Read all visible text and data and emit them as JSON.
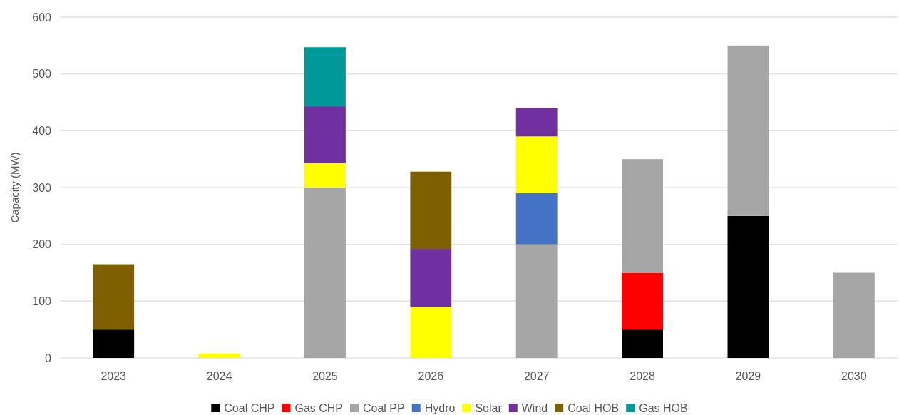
{
  "chart_data": {
    "type": "bar",
    "stacked": true,
    "ylabel": "Capacity (MW)",
    "categories": [
      "2023",
      "2024",
      "2025",
      "2026",
      "2027",
      "2028",
      "2029",
      "2030"
    ],
    "series": [
      {
        "name": "Coal CHP",
        "color": "#000000",
        "values": [
          50,
          null,
          null,
          null,
          null,
          50,
          250,
          null
        ]
      },
      {
        "name": "Gas CHP",
        "color": "#ff0000",
        "values": [
          null,
          null,
          null,
          null,
          null,
          100,
          null,
          null
        ]
      },
      {
        "name": "Coal PP",
        "color": "#a6a6a6",
        "values": [
          null,
          null,
          300,
          null,
          200,
          200,
          300,
          150
        ]
      },
      {
        "name": "Hydro",
        "color": "#4472c4",
        "values": [
          null,
          null,
          null,
          null,
          90,
          null,
          null,
          null
        ]
      },
      {
        "name": "Solar",
        "color": "#ffff00",
        "values": [
          null,
          8,
          43,
          90,
          100,
          null,
          null,
          null
        ]
      },
      {
        "name": "Wind",
        "color": "#7030a0",
        "values": [
          null,
          null,
          100,
          102,
          50,
          null,
          null,
          null
        ]
      },
      {
        "name": "Coal HOB",
        "color": "#7f6000",
        "values": [
          115,
          null,
          null,
          136,
          null,
          null,
          null,
          null
        ]
      },
      {
        "name": "Gas HOB",
        "color": "#009999",
        "values": [
          null,
          null,
          104,
          null,
          null,
          null,
          null,
          null
        ]
      }
    ],
    "ylim": [
      0,
      600
    ],
    "yticks": [
      0,
      100,
      200,
      300,
      400,
      500,
      600
    ],
    "grid": "y",
    "legend": "bottom"
  }
}
